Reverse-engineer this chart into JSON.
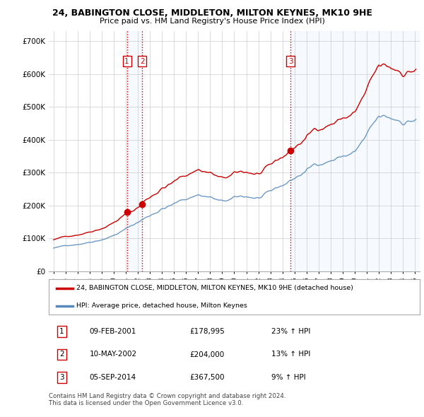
{
  "title": "24, BABINGTON CLOSE, MIDDLETON, MILTON KEYNES, MK10 9HE",
  "subtitle": "Price paid vs. HM Land Registry's House Price Index (HPI)",
  "yticks": [
    0,
    100000,
    200000,
    300000,
    400000,
    500000,
    600000,
    700000
  ],
  "ylim": [
    0,
    730000
  ],
  "xlim_start": 1994.6,
  "xlim_end": 2025.4,
  "sale_dates_num": [
    2001.09,
    2002.36,
    2014.68
  ],
  "sale_prices": [
    178995,
    204000,
    367500
  ],
  "sale_labels": [
    "1",
    "2",
    "3"
  ],
  "vline_color": "#cc0000",
  "shade_color": "#ddeeff",
  "sale_marker_color": "#cc0000",
  "legend_line1": "24, BABINGTON CLOSE, MIDDLETON, MILTON KEYNES, MK10 9HE (detached house)",
  "legend_line2": "HPI: Average price, detached house, Milton Keynes",
  "table_rows": [
    [
      "1",
      "09-FEB-2001",
      "£178,995",
      "23% ↑ HPI"
    ],
    [
      "2",
      "10-MAY-2002",
      "£204,000",
      "13% ↑ HPI"
    ],
    [
      "3",
      "05-SEP-2014",
      "£367,500",
      "9% ↑ HPI"
    ]
  ],
  "footer": "Contains HM Land Registry data © Crown copyright and database right 2024.\nThis data is licensed under the Open Government Licence v3.0.",
  "hpi_color": "#5588bb",
  "price_color": "#cc0000",
  "grid_color": "#cccccc",
  "background_color": "#ffffff"
}
